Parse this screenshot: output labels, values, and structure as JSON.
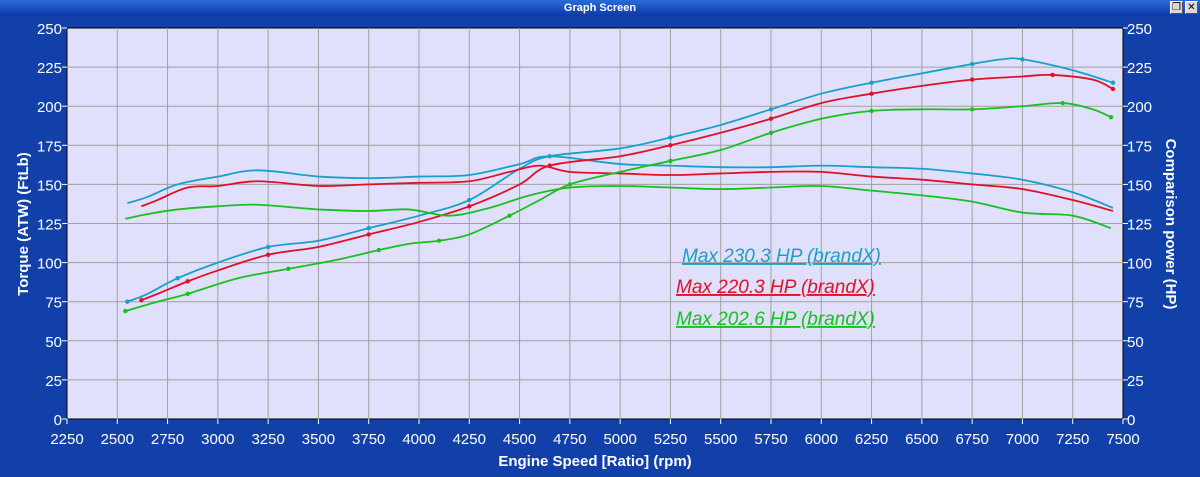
{
  "window": {
    "title": "Graph Screen",
    "restore_icon": "restore-icon",
    "close_icon": "close-icon"
  },
  "colors": {
    "blue": "#1aa0c8",
    "red": "#e0102a",
    "green": "#18c020",
    "plot_bg": "#e0e0fc",
    "frame": "#1040a8",
    "grid": "#a0a0a0"
  },
  "chart_data": {
    "type": "line",
    "xlabel": "Engine Speed [Ratio] (rpm)",
    "ylabel_left": "Torque (ATW) (FtLb)",
    "ylabel_right": "Comparison power (HP)",
    "xlim": [
      2250,
      7500
    ],
    "ylim": [
      0,
      250
    ],
    "xticks": [
      "2250",
      "2500",
      "2750",
      "3000",
      "3250",
      "3500",
      "3750",
      "4000",
      "4250",
      "4500",
      "4750",
      "5000",
      "5250",
      "5500",
      "5750",
      "6000",
      "6250",
      "6500",
      "6750",
      "7000",
      "7250",
      "7500"
    ],
    "yticks": [
      "0",
      "25",
      "50",
      "75",
      "100",
      "125",
      "150",
      "175",
      "200",
      "225",
      "250"
    ],
    "grid": true,
    "series": [
      {
        "name": "Max 230.3 HP (brandX)",
        "color": "#1aa0c8",
        "hp": [
          [
            2550,
            75
          ],
          [
            2650,
            80
          ],
          [
            2800,
            90
          ],
          [
            3000,
            100
          ],
          [
            3250,
            110
          ],
          [
            3500,
            114
          ],
          [
            3750,
            122
          ],
          [
            4000,
            130
          ],
          [
            4250,
            140
          ],
          [
            4500,
            160
          ],
          [
            4650,
            168
          ],
          [
            5000,
            173
          ],
          [
            5250,
            180
          ],
          [
            5500,
            188
          ],
          [
            5750,
            198
          ],
          [
            6000,
            208
          ],
          [
            6250,
            215
          ],
          [
            6500,
            221
          ],
          [
            6750,
            227
          ],
          [
            6900,
            230
          ],
          [
            7000,
            230
          ],
          [
            7250,
            223
          ],
          [
            7450,
            215
          ]
        ],
        "torque": [
          [
            2550,
            138
          ],
          [
            2650,
            142
          ],
          [
            2800,
            150
          ],
          [
            3000,
            155
          ],
          [
            3200,
            159
          ],
          [
            3500,
            155
          ],
          [
            3750,
            154
          ],
          [
            4000,
            155
          ],
          [
            4250,
            156
          ],
          [
            4500,
            163
          ],
          [
            4650,
            168
          ],
          [
            5000,
            163
          ],
          [
            5250,
            162
          ],
          [
            5500,
            161
          ],
          [
            5750,
            161
          ],
          [
            6000,
            162
          ],
          [
            6250,
            161
          ],
          [
            6500,
            160
          ],
          [
            6750,
            157
          ],
          [
            7000,
            153
          ],
          [
            7250,
            145
          ],
          [
            7450,
            135
          ]
        ]
      },
      {
        "name": "Max 220.3 HP (brandX)",
        "color": "#e0102a",
        "hp": [
          [
            2620,
            76
          ],
          [
            2700,
            80
          ],
          [
            2850,
            88
          ],
          [
            3000,
            95
          ],
          [
            3250,
            105
          ],
          [
            3500,
            110
          ],
          [
            3750,
            118
          ],
          [
            4000,
            126
          ],
          [
            4250,
            136
          ],
          [
            4500,
            150
          ],
          [
            4650,
            162
          ],
          [
            5000,
            168
          ],
          [
            5250,
            175
          ],
          [
            5500,
            183
          ],
          [
            5750,
            192
          ],
          [
            6000,
            202
          ],
          [
            6250,
            208
          ],
          [
            6500,
            213
          ],
          [
            6750,
            217
          ],
          [
            7000,
            219
          ],
          [
            7150,
            220
          ],
          [
            7350,
            217
          ],
          [
            7450,
            211
          ]
        ],
        "torque": [
          [
            2620,
            136
          ],
          [
            2700,
            140
          ],
          [
            2850,
            148
          ],
          [
            3000,
            149
          ],
          [
            3200,
            152
          ],
          [
            3500,
            149
          ],
          [
            3750,
            150
          ],
          [
            4000,
            151
          ],
          [
            4250,
            152
          ],
          [
            4450,
            158
          ],
          [
            4600,
            162
          ],
          [
            4750,
            158
          ],
          [
            5000,
            157
          ],
          [
            5250,
            156
          ],
          [
            5500,
            157
          ],
          [
            5750,
            158
          ],
          [
            6000,
            158
          ],
          [
            6250,
            155
          ],
          [
            6500,
            153
          ],
          [
            6750,
            150
          ],
          [
            7000,
            147
          ],
          [
            7250,
            140
          ],
          [
            7450,
            133
          ]
        ]
      },
      {
        "name": "Max 202.6 HP (brandX)",
        "color": "#18c020",
        "hp": [
          [
            2540,
            69
          ],
          [
            2700,
            75
          ],
          [
            2850,
            80
          ],
          [
            3100,
            90
          ],
          [
            3350,
            96
          ],
          [
            3600,
            102
          ],
          [
            3800,
            108
          ],
          [
            3950,
            112
          ],
          [
            4100,
            114
          ],
          [
            4250,
            118
          ],
          [
            4450,
            130
          ],
          [
            4600,
            140
          ],
          [
            4750,
            150
          ],
          [
            5000,
            158
          ],
          [
            5250,
            165
          ],
          [
            5500,
            172
          ],
          [
            5750,
            183
          ],
          [
            6000,
            192
          ],
          [
            6250,
            197
          ],
          [
            6500,
            198
          ],
          [
            6750,
            198
          ],
          [
            7000,
            200
          ],
          [
            7200,
            202
          ],
          [
            7350,
            198
          ],
          [
            7440,
            193
          ]
        ],
        "torque": [
          [
            2540,
            128
          ],
          [
            2650,
            131
          ],
          [
            2800,
            134
          ],
          [
            3000,
            136
          ],
          [
            3200,
            137
          ],
          [
            3500,
            134
          ],
          [
            3750,
            133
          ],
          [
            3950,
            134
          ],
          [
            4150,
            130
          ],
          [
            4350,
            135
          ],
          [
            4550,
            143
          ],
          [
            4750,
            148
          ],
          [
            5000,
            149
          ],
          [
            5250,
            148
          ],
          [
            5500,
            147
          ],
          [
            5750,
            148
          ],
          [
            6000,
            149
          ],
          [
            6250,
            146
          ],
          [
            6500,
            143
          ],
          [
            6750,
            139
          ],
          [
            7000,
            132
          ],
          [
            7250,
            130
          ],
          [
            7440,
            122
          ]
        ]
      }
    ]
  }
}
